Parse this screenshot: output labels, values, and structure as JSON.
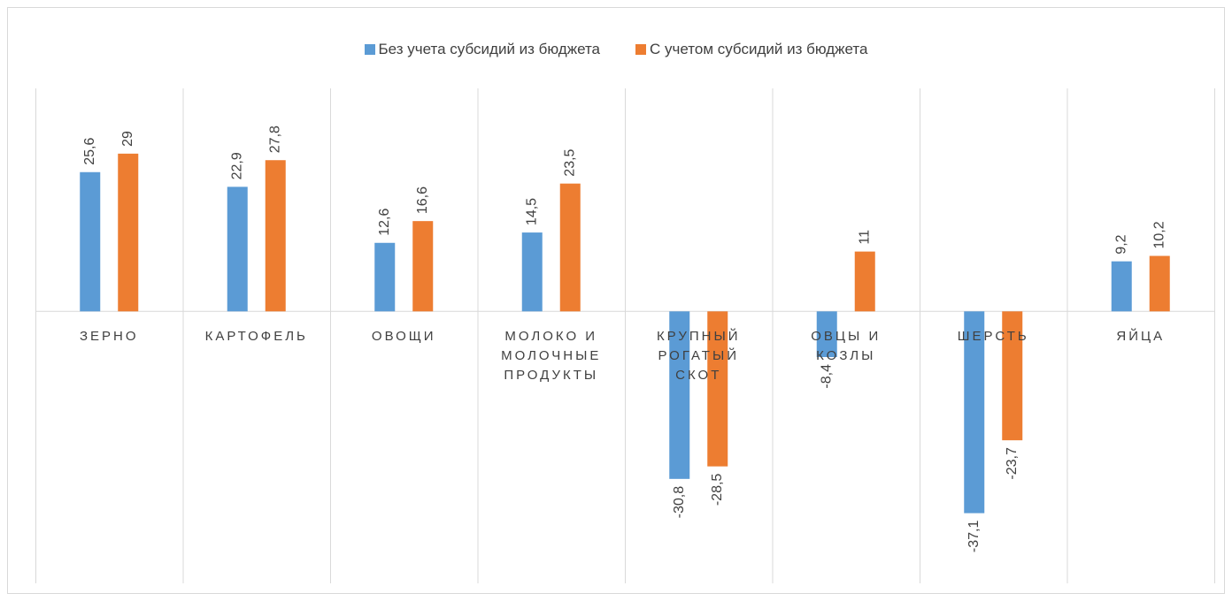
{
  "chart_data": {
    "type": "bar",
    "categories": [
      "ЗЕРНО",
      "КАРТОФЕЛЬ",
      "ОВОЩИ",
      "МОЛОКО И МОЛОЧНЫЕ ПРОДУКТЫ",
      "КРУПНЫЙ РОГАТЫЙ СКОТ",
      "ОВЦЫ И КОЗЛЫ",
      "ШЕРСТЬ",
      "ЯЙЦА"
    ],
    "series": [
      {
        "name": "Без учета субсидий из бюджета",
        "color": "#5b9bd5",
        "values": [
          25.6,
          22.9,
          12.6,
          14.5,
          -30.8,
          -8.4,
          -37.1,
          9.2
        ],
        "value_labels": [
          "25,6",
          "22,9",
          "12,6",
          "14,5",
          "-30,8",
          "-8,4",
          "-37,1",
          "9,2"
        ]
      },
      {
        "name": "С учетом субсидий из бюджета",
        "color": "#ed7d31",
        "values": [
          29,
          27.8,
          16.6,
          23.5,
          -28.5,
          11,
          -23.7,
          10.2
        ],
        "value_labels": [
          "29",
          "27,8",
          "16,6",
          "23,5",
          "-28,5",
          "11",
          "-23,7",
          "10,2"
        ]
      }
    ],
    "ylim": [
      -50,
      41
    ]
  }
}
